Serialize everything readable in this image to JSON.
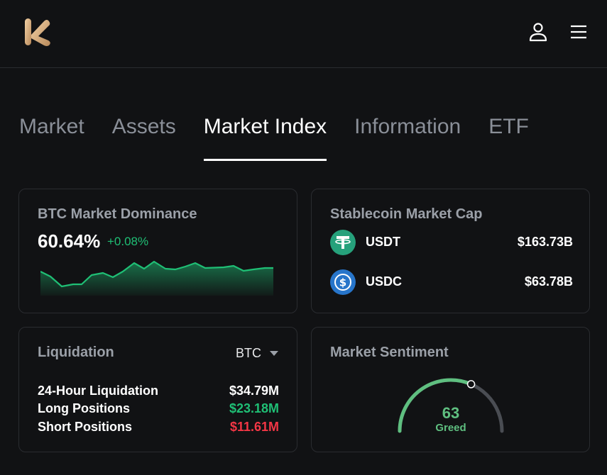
{
  "header": {
    "logo_icon": "kucoin-logo-icon",
    "user_icon": "user-icon",
    "menu_icon": "hamburger-menu-icon"
  },
  "tabs": [
    {
      "label": "Market",
      "active": false
    },
    {
      "label": "Assets",
      "active": false
    },
    {
      "label": "Market Index",
      "active": true
    },
    {
      "label": "Information",
      "active": false
    },
    {
      "label": "ETF",
      "active": false
    }
  ],
  "btc_dominance": {
    "title": "BTC Market Dominance",
    "value": "60.64%",
    "change": "+0.08%",
    "color": "#1fbf75"
  },
  "stablecoin": {
    "title": "Stablecoin Market Cap",
    "items": [
      {
        "name": "USDT",
        "value": "$163.73B",
        "icon": "tether-icon",
        "color": "#26a17b"
      },
      {
        "name": "USDC",
        "value": "$63.78B",
        "icon": "usdc-icon",
        "color": "#2775ca"
      }
    ]
  },
  "liquidation": {
    "title": "Liquidation",
    "selected": "BTC",
    "rows": [
      {
        "label": "24-Hour Liquidation",
        "value": "$34.79M",
        "color": "#ffffff"
      },
      {
        "label": "Long Positions",
        "value": "$23.18M",
        "color": "#1fbf75"
      },
      {
        "label": "Short Positions",
        "value": "$11.61M",
        "color": "#f23645"
      }
    ]
  },
  "sentiment": {
    "title": "Market Sentiment",
    "value": "63",
    "label": "Greed",
    "level": 0.63,
    "color": "#5fbf80"
  }
}
